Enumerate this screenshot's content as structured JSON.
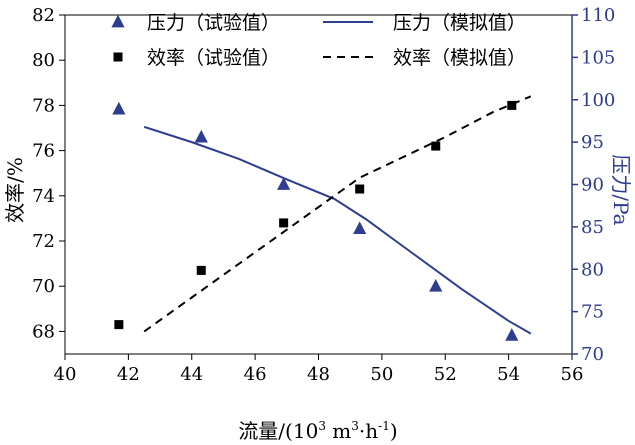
{
  "chart_data": {
    "type": "scatter",
    "x_axis": {
      "label_prefix": "流量/(10",
      "label_sup1": "3",
      "label_mid": " m",
      "label_sup2": "3",
      "label_mid2": "·h",
      "label_sup3": "-1",
      "label_suffix": ")",
      "range": [
        40,
        56
      ],
      "ticks": [
        40,
        42,
        44,
        46,
        48,
        50,
        52,
        54,
        56
      ]
    },
    "y_left": {
      "label": "效率/%",
      "range": [
        67,
        82
      ],
      "ticks": [
        68,
        70,
        72,
        74,
        76,
        78,
        80,
        82
      ]
    },
    "y_right": {
      "label": "压力/Pa",
      "range": [
        70,
        110
      ],
      "ticks": [
        70,
        75,
        80,
        85,
        90,
        95,
        100,
        105,
        110
      ],
      "color": "#2e3d8f"
    },
    "series": [
      {
        "name": "压力（试验值）",
        "marker": "triangle",
        "axis": "right",
        "color": "#2e3d8f",
        "x": [
          41.7,
          44.3,
          46.9,
          49.3,
          51.7,
          54.1
        ],
        "y": [
          98.9,
          95.6,
          90.0,
          84.8,
          78.0,
          72.2
        ]
      },
      {
        "name": "效率（试验值）",
        "marker": "square",
        "axis": "left",
        "color": "#000000",
        "x": [
          41.7,
          44.3,
          46.9,
          49.3,
          51.7,
          54.1
        ],
        "y": [
          68.3,
          70.7,
          72.8,
          74.3,
          76.2,
          78.0
        ]
      },
      {
        "name": "压力（模拟值）",
        "line": "solid",
        "axis": "right",
        "color": "#2e3d8f",
        "x": [
          42.5,
          44.0,
          45.5,
          47.0,
          48.5,
          49.5,
          51.0,
          52.5,
          54.0,
          54.7
        ],
        "y": [
          96.8,
          95.0,
          93.0,
          90.6,
          88.3,
          85.9,
          81.8,
          77.7,
          73.9,
          72.4
        ]
      },
      {
        "name": "效率（模拟值）",
        "line": "dashed",
        "axis": "left",
        "color": "#000000",
        "x": [
          42.5,
          44.0,
          45.5,
          47.0,
          48.5,
          49.3,
          50.5,
          52.0,
          53.5,
          54.7
        ],
        "y": [
          68.0,
          69.5,
          71.0,
          72.5,
          74.0,
          74.8,
          75.6,
          76.6,
          77.7,
          78.4
        ]
      }
    ],
    "legend": {
      "placement": "top",
      "items": [
        "压力（试验值）",
        "压力（模拟值）",
        "效率（试验值）",
        "效率（模拟值）"
      ]
    },
    "grid": false
  }
}
